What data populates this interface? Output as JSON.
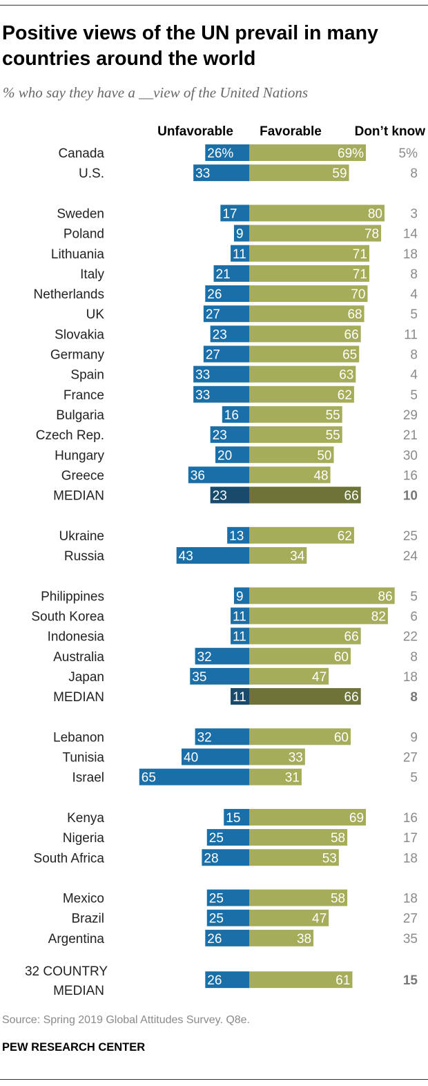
{
  "header": {
    "title": "Positive views of the UN prevail in many countries around the world",
    "subtitle": "% who say they have a __view of the United Nations"
  },
  "footer": {
    "source": "Source: Spring 2019 Global Attitudes Survey. Q8e.",
    "brand": "PEW RESEARCH CENTER"
  },
  "colors": {
    "unfavorable": "#1b6fa8",
    "favorable": "#a5ad5a",
    "median_unfavorable": "#184a6c",
    "median_favorable": "#6e7337",
    "label_text": "#222222",
    "dont_know_text": "#8a8a8a",
    "bold_median_text": "#777777"
  },
  "chart_data": {
    "type": "bar",
    "orientation": "horizontal-diverging",
    "columns": [
      "Unfavorable",
      "Favorable",
      "Don’t know"
    ],
    "rows": [
      {
        "label": "Canada",
        "unfavorable": 26,
        "favorable": 69,
        "dont_know": 5,
        "unf_label": "26%",
        "fav_label": "69%",
        "dk_label": "5%"
      },
      {
        "label": "U.S.",
        "unfavorable": 33,
        "favorable": 59,
        "dont_know": 8
      },
      {
        "gap": true
      },
      {
        "label": "Sweden",
        "unfavorable": 17,
        "favorable": 80,
        "dont_know": 3
      },
      {
        "label": "Poland",
        "unfavorable": 9,
        "favorable": 78,
        "dont_know": 14
      },
      {
        "label": "Lithuania",
        "unfavorable": 11,
        "favorable": 71,
        "dont_know": 18
      },
      {
        "label": "Italy",
        "unfavorable": 21,
        "favorable": 71,
        "dont_know": 8
      },
      {
        "label": "Netherlands",
        "unfavorable": 26,
        "favorable": 70,
        "dont_know": 4
      },
      {
        "label": "UK",
        "unfavorable": 27,
        "favorable": 68,
        "dont_know": 5
      },
      {
        "label": "Slovakia",
        "unfavorable": 23,
        "favorable": 66,
        "dont_know": 11
      },
      {
        "label": "Germany",
        "unfavorable": 27,
        "favorable": 65,
        "dont_know": 8
      },
      {
        "label": "Spain",
        "unfavorable": 33,
        "favorable": 63,
        "dont_know": 4
      },
      {
        "label": "France",
        "unfavorable": 33,
        "favorable": 62,
        "dont_know": 5
      },
      {
        "label": "Bulgaria",
        "unfavorable": 16,
        "favorable": 55,
        "dont_know": 29
      },
      {
        "label": "Czech Rep.",
        "unfavorable": 23,
        "favorable": 55,
        "dont_know": 21
      },
      {
        "label": "Hungary",
        "unfavorable": 20,
        "favorable": 50,
        "dont_know": 30
      },
      {
        "label": "Greece",
        "unfavorable": 36,
        "favorable": 48,
        "dont_know": 16
      },
      {
        "label": "MEDIAN",
        "unfavorable": 23,
        "favorable": 66,
        "dont_know": 10,
        "median": true
      },
      {
        "gap": true
      },
      {
        "label": "Ukraine",
        "unfavorable": 13,
        "favorable": 62,
        "dont_know": 25
      },
      {
        "label": "Russia",
        "unfavorable": 43,
        "favorable": 34,
        "dont_know": 24
      },
      {
        "gap": true
      },
      {
        "label": "Philippines",
        "unfavorable": 9,
        "favorable": 86,
        "dont_know": 5
      },
      {
        "label": "South Korea",
        "unfavorable": 11,
        "favorable": 82,
        "dont_know": 6
      },
      {
        "label": "Indonesia",
        "unfavorable": 11,
        "favorable": 66,
        "dont_know": 22
      },
      {
        "label": "Australia",
        "unfavorable": 32,
        "favorable": 60,
        "dont_know": 8
      },
      {
        "label": "Japan",
        "unfavorable": 35,
        "favorable": 47,
        "dont_know": 18
      },
      {
        "label": "MEDIAN",
        "unfavorable": 11,
        "favorable": 66,
        "dont_know": 8,
        "median": true
      },
      {
        "gap": true
      },
      {
        "label": "Lebanon",
        "unfavorable": 32,
        "favorable": 60,
        "dont_know": 9
      },
      {
        "label": "Tunisia",
        "unfavorable": 40,
        "favorable": 33,
        "dont_know": 27
      },
      {
        "label": "Israel",
        "unfavorable": 65,
        "favorable": 31,
        "dont_know": 5
      },
      {
        "gap": true
      },
      {
        "label": "Kenya",
        "unfavorable": 15,
        "favorable": 69,
        "dont_know": 16
      },
      {
        "label": "Nigeria",
        "unfavorable": 25,
        "favorable": 58,
        "dont_know": 17
      },
      {
        "label": "South Africa",
        "unfavorable": 28,
        "favorable": 53,
        "dont_know": 18
      },
      {
        "gap": true
      },
      {
        "label": "Mexico",
        "unfavorable": 25,
        "favorable": 58,
        "dont_know": 18
      },
      {
        "label": "Brazil",
        "unfavorable": 25,
        "favorable": 47,
        "dont_know": 27
      },
      {
        "label": "Argentina",
        "unfavorable": 26,
        "favorable": 38,
        "dont_know": 35
      },
      {
        "gap": true
      },
      {
        "label": "32 COUNTRY",
        "label2": "MEDIAN",
        "unfavorable": 26,
        "favorable": 61,
        "dont_know": 15,
        "overall": true
      }
    ]
  }
}
